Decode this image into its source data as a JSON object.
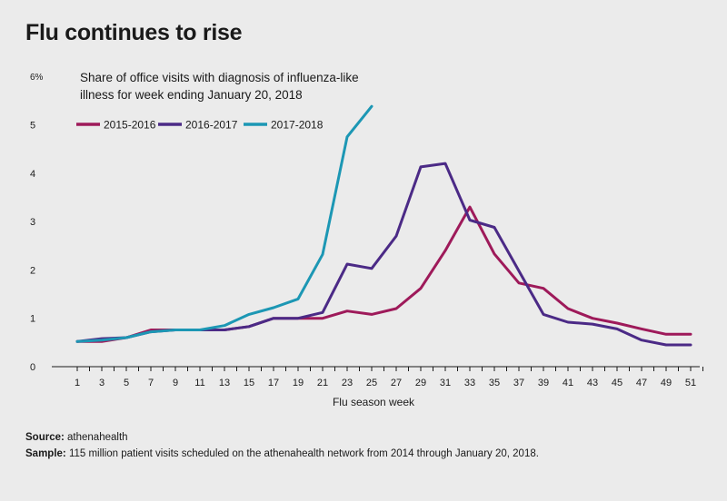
{
  "title": "Flu continues to rise",
  "subtitle_line1": "Share of office visits with diagnosis of influenza-like",
  "subtitle_line2": "illness for week ending January 20, 2018",
  "source_label": "Source:",
  "source_text": "athenahealth",
  "sample_label": "Sample:",
  "sample_text": "115 million patient visits scheduled on the athenahealth network from 2014 through January 20, 2018.",
  "chart_data": {
    "type": "line",
    "xlabel": "Flu season week",
    "ylabel": "",
    "xlim": [
      1,
      52
    ],
    "ylim": [
      0,
      6
    ],
    "x_ticks": [
      1,
      3,
      5,
      7,
      9,
      11,
      13,
      15,
      17,
      19,
      21,
      23,
      25,
      27,
      29,
      31,
      33,
      35,
      37,
      39,
      41,
      43,
      45,
      47,
      49,
      51
    ],
    "y_ticks": [
      {
        "value": 0,
        "label": "0"
      },
      {
        "value": 1,
        "label": "1"
      },
      {
        "value": 2,
        "label": "2"
      },
      {
        "value": 3,
        "label": "3"
      },
      {
        "value": 4,
        "label": "4"
      },
      {
        "value": 5,
        "label": "5"
      },
      {
        "value": 6,
        "label": "6%"
      }
    ],
    "grid": false,
    "legend_position": "top-left",
    "series": [
      {
        "name": "2015-2016",
        "color": "#9e1a5a",
        "x": [
          1,
          3,
          5,
          7,
          9,
          11,
          13,
          15,
          17,
          19,
          21,
          23,
          25,
          27,
          29,
          31,
          33,
          35,
          37,
          39,
          41,
          43,
          45,
          47,
          49,
          51
        ],
        "values": [
          0.52,
          0.52,
          0.6,
          0.76,
          0.76,
          0.76,
          0.76,
          0.83,
          1.0,
          1.0,
          1.0,
          1.15,
          1.08,
          1.2,
          1.62,
          2.4,
          3.3,
          2.33,
          1.73,
          1.62,
          1.2,
          1.0,
          0.9,
          0.78,
          0.67,
          0.67
        ]
      },
      {
        "name": "2016-2017",
        "color": "#4b2a86",
        "x": [
          1,
          3,
          5,
          7,
          9,
          11,
          13,
          15,
          17,
          19,
          21,
          23,
          25,
          27,
          29,
          31,
          33,
          35,
          37,
          39,
          41,
          43,
          45,
          47,
          49,
          51
        ],
        "values": [
          0.52,
          0.58,
          0.6,
          0.72,
          0.76,
          0.76,
          0.76,
          0.83,
          1.0,
          1.0,
          1.12,
          2.12,
          2.03,
          2.7,
          4.13,
          4.2,
          3.03,
          2.88,
          1.98,
          1.08,
          0.92,
          0.88,
          0.78,
          0.55,
          0.45,
          0.45
        ]
      },
      {
        "name": "2017-2018",
        "color": "#1c97b4",
        "x": [
          1,
          3,
          5,
          7,
          9,
          11,
          13,
          15,
          17,
          19,
          21,
          23,
          25
        ],
        "values": [
          0.52,
          0.55,
          0.6,
          0.72,
          0.76,
          0.76,
          0.85,
          1.08,
          1.22,
          1.4,
          2.32,
          4.75,
          5.38
        ]
      }
    ]
  }
}
